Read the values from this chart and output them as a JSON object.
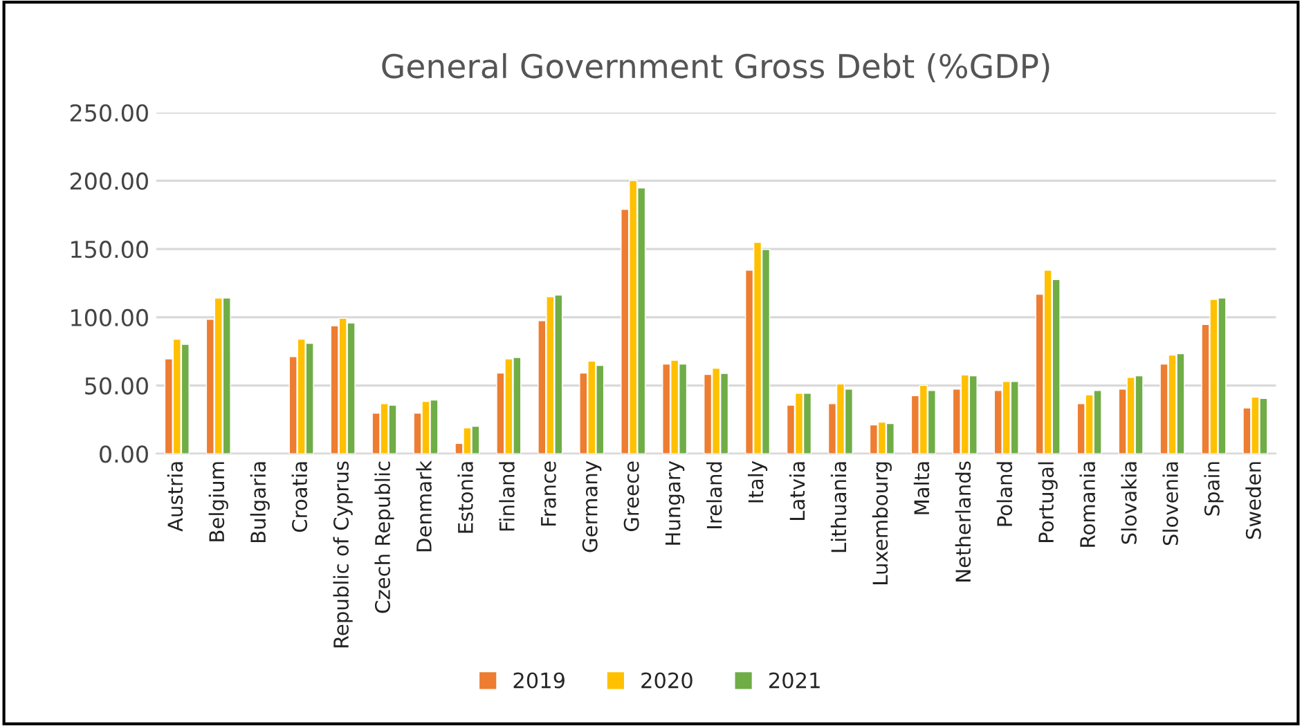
{
  "chart_data": {
    "type": "bar",
    "title": "General Government Gross Debt (%GDP)",
    "categories": [
      "Austria",
      "Belgium",
      "Bulgaria",
      "Croatia",
      "Republic of Cyprus",
      "Czech Republic",
      "Denmark",
      "Estonia",
      "Finland",
      "France",
      "Germany",
      "Greece",
      "Hungary",
      "Ireland",
      "Italy",
      "Latvia",
      "Lithuania",
      "Luxembourg",
      "Malta",
      "Netherlands",
      "Poland",
      "Portugal",
      "Romania",
      "Slovakia",
      "Slovenia",
      "Spain",
      "Sweden"
    ],
    "series": [
      {
        "name": "2019",
        "color": "#ed7d31",
        "values": [
          69.5,
          98.5,
          null,
          71.2,
          93.7,
          29.7,
          29.7,
          7.6,
          59.1,
          97.5,
          59.1,
          179.1,
          65.7,
          58.1,
          134.5,
          35.6,
          36.7,
          21.1,
          42.5,
          47.4,
          46.3,
          116.9,
          36.7,
          47.4,
          65.7,
          94.7,
          33.5
        ]
      },
      {
        "name": "2020",
        "color": "#ffc000",
        "values": [
          84.0,
          114.1,
          null,
          84.0,
          99.2,
          36.7,
          38.4,
          19.0,
          69.5,
          115.1,
          67.8,
          200.2,
          68.5,
          62.6,
          154.9,
          44.3,
          51.2,
          23.2,
          50.1,
          57.7,
          52.9,
          134.5,
          43.2,
          56.0,
          72.3,
          113.1,
          41.5
        ]
      },
      {
        "name": "2021",
        "color": "#70ad47",
        "values": [
          80.2,
          114.1,
          null,
          80.9,
          95.8,
          35.6,
          39.4,
          20.1,
          70.5,
          116.2,
          64.7,
          194.7,
          65.7,
          58.8,
          149.7,
          44.3,
          47.4,
          22.1,
          46.3,
          57.1,
          52.9,
          127.6,
          46.3,
          57.1,
          73.3,
          114.1,
          40.5
        ]
      }
    ],
    "ylim": [
      0,
      250
    ],
    "yticks": [
      {
        "value": 0,
        "label": "0.00"
      },
      {
        "value": 50,
        "label": "50.00"
      },
      {
        "value": 100,
        "label": "100.00"
      },
      {
        "value": 150,
        "label": "150.00"
      },
      {
        "value": 200,
        "label": "200.00"
      },
      {
        "value": 250,
        "label": "250.00"
      }
    ],
    "grid": "y",
    "legend": "bottom"
  }
}
